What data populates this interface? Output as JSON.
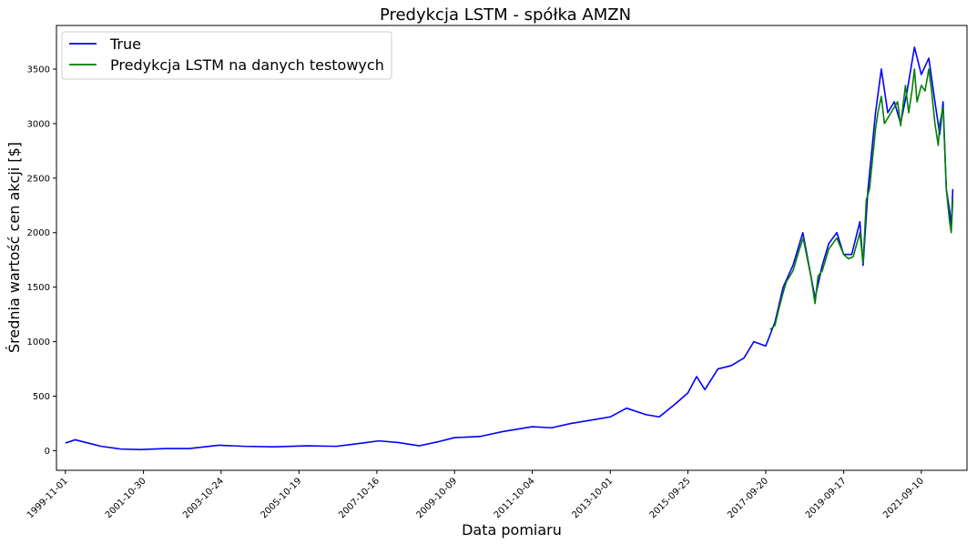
{
  "chart_data": {
    "type": "line",
    "title": "Predykcja LSTM - spółka AMZN",
    "xlabel": "Data pomiaru",
    "ylabel": "Średnia wartość cen akcji [$]",
    "x_tick_labels": [
      "1999-11-01",
      "2001-10-30",
      "2003-10-24",
      "2005-10-19",
      "2007-10-16",
      "2009-10-09",
      "2011-10-04",
      "2013-10-01",
      "2015-09-25",
      "2017-09-20",
      "2019-09-17",
      "2021-09-10"
    ],
    "yticks": [
      0,
      500,
      1000,
      1500,
      2000,
      2500,
      3000,
      3500
    ],
    "ylim": [
      -180,
      3900
    ],
    "xlim": [
      "1999-08-10",
      "2022-11-10"
    ],
    "grid": false,
    "legend_position": "top-left",
    "series": [
      {
        "name": "True",
        "color": "#0000ff",
        "x": [
          "1999-11-01",
          "2000-02-01",
          "2000-06-01",
          "2000-10-01",
          "2001-04-01",
          "2001-10-01",
          "2002-06-01",
          "2003-01-01",
          "2003-10-01",
          "2004-06-01",
          "2005-03-01",
          "2006-01-01",
          "2006-10-01",
          "2007-06-01",
          "2007-11-01",
          "2008-05-01",
          "2008-11-15",
          "2009-05-01",
          "2009-10-09",
          "2010-06-01",
          "2011-01-01",
          "2011-10-04",
          "2012-04-01",
          "2012-10-01",
          "2013-06-01",
          "2013-10-01",
          "2014-03-01",
          "2014-09-01",
          "2015-01-01",
          "2015-06-01",
          "2015-09-25",
          "2015-12-15",
          "2016-03-01",
          "2016-07-01",
          "2016-11-01",
          "2017-03-01",
          "2017-06-01",
          "2017-09-20",
          "2017-12-15",
          "2018-03-01",
          "2018-06-01",
          "2018-09-01",
          "2018-12-24",
          "2019-03-01",
          "2019-05-01",
          "2019-07-15",
          "2019-09-17",
          "2019-12-01",
          "2020-02-15",
          "2020-03-16",
          "2020-05-01",
          "2020-07-10",
          "2020-09-02",
          "2020-11-01",
          "2021-01-01",
          "2021-03-01",
          "2021-05-01",
          "2021-07-08",
          "2021-09-10",
          "2021-11-19",
          "2022-01-15",
          "2022-03-01",
          "2022-04-01",
          "2022-05-01",
          "2022-06-01",
          "2022-06-16",
          "2022-07-01"
        ],
        "y": [
          70,
          100,
          70,
          40,
          15,
          10,
          20,
          20,
          50,
          40,
          35,
          45,
          40,
          70,
          90,
          75,
          45,
          80,
          120,
          130,
          175,
          220,
          210,
          250,
          290,
          310,
          390,
          330,
          310,
          430,
          530,
          680,
          560,
          750,
          780,
          850,
          1000,
          960,
          1180,
          1500,
          1700,
          2000,
          1400,
          1700,
          1900,
          2000,
          1800,
          1800,
          2100,
          1700,
          2400,
          3100,
          3500,
          3100,
          3200,
          3000,
          3300,
          3700,
          3450,
          3600,
          3200,
          2900,
          3200,
          2400,
          2200,
          2050,
          2400
        ]
      },
      {
        "name": "Predykcja LSTM na danych testowych",
        "color": "#008000",
        "x": [
          "2017-11-01",
          "2017-12-15",
          "2018-01-20",
          "2018-03-01",
          "2018-04-01",
          "2018-06-01",
          "2018-08-01",
          "2018-09-04",
          "2018-10-15",
          "2018-11-15",
          "2018-12-24",
          "2019-01-20",
          "2019-03-01",
          "2019-05-01",
          "2019-07-15",
          "2019-09-17",
          "2019-11-01",
          "2019-12-15",
          "2020-02-15",
          "2020-03-16",
          "2020-04-15",
          "2020-05-15",
          "2020-07-10",
          "2020-08-01",
          "2020-09-02",
          "2020-10-01",
          "2020-11-01",
          "2020-12-01",
          "2021-01-01",
          "2021-02-01",
          "2021-03-01",
          "2021-04-15",
          "2021-05-15",
          "2021-06-15",
          "2021-07-08",
          "2021-08-01",
          "2021-09-10",
          "2021-10-15",
          "2021-11-19",
          "2021-12-15",
          "2022-01-15",
          "2022-02-15",
          "2022-03-01",
          "2022-04-01",
          "2022-05-01",
          "2022-06-01",
          "2022-06-16",
          "2022-07-01"
        ],
        "y": [
          1110,
          1150,
          1300,
          1450,
          1550,
          1650,
          1850,
          1950,
          1750,
          1600,
          1350,
          1600,
          1650,
          1850,
          1950,
          1800,
          1760,
          1780,
          2000,
          1720,
          2300,
          2400,
          2950,
          3100,
          3250,
          3000,
          3050,
          3100,
          3150,
          3200,
          2980,
          3350,
          3100,
          3300,
          3500,
          3200,
          3350,
          3300,
          3500,
          3300,
          3000,
          2800,
          3000,
          3150,
          2400,
          2100,
          2000,
          2300
        ]
      }
    ]
  }
}
